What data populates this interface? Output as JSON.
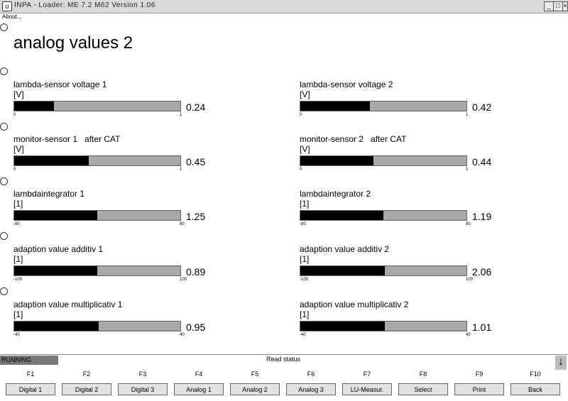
{
  "window": {
    "title": "INPA - Loader:  ME 7.2 M62 Version 1.06",
    "controls": {
      "minimize": "_",
      "maximize": "□",
      "close": "×"
    }
  },
  "menu": {
    "about": "About..."
  },
  "page": {
    "title": "analog values 2"
  },
  "gauges": [
    {
      "name": "lambda-sensor voltage 1",
      "name2": "",
      "unit": "[V]",
      "min": "0",
      "max": "1",
      "value": "0.24",
      "fraction": 0.24
    },
    {
      "name": "lambda-sensor voltage 2",
      "name2": "",
      "unit": "[V]",
      "min": "0",
      "max": "1",
      "value": "0.42",
      "fraction": 0.42
    },
    {
      "name": "monitor-sensor 1",
      "name2": "after CAT",
      "unit": "[V]",
      "min": "0",
      "max": "1",
      "value": "0.45",
      "fraction": 0.45
    },
    {
      "name": "monitor-sensor 2",
      "name2": "after CAT",
      "unit": "[V]",
      "min": "0",
      "max": "1",
      "value": "0.44",
      "fraction": 0.44
    },
    {
      "name": "lambdaintegrator 1",
      "name2": "",
      "unit": "[1]",
      "min": "-80",
      "max": "80",
      "value": "1.25",
      "fraction": 0.5
    },
    {
      "name": "lambdaintegrator 2",
      "name2": "",
      "unit": "[1]",
      "min": "-80",
      "max": "80",
      "value": "1.19",
      "fraction": 0.5
    },
    {
      "name": "adaption value additiv 1",
      "name2": "",
      "unit": "[1]",
      "min": "-100",
      "max": "100",
      "value": "0.89",
      "fraction": 0.5
    },
    {
      "name": "adaption value additiv 2",
      "name2": "",
      "unit": "[1]",
      "min": "-100",
      "max": "100",
      "value": "2.06",
      "fraction": 0.51
    },
    {
      "name": "adaption value multiplicativ 1",
      "name2": "",
      "unit": "[1]",
      "min": "-40",
      "max": "40",
      "value": "0.95",
      "fraction": 0.51
    },
    {
      "name": "adaption value multiplicativ 2",
      "name2": "",
      "unit": "[1]",
      "min": "-40",
      "max": "40",
      "value": "1.01",
      "fraction": 0.51
    }
  ],
  "status": {
    "state": "RUNNING",
    "message": "Read status",
    "arrow": "↓"
  },
  "fkeys": [
    {
      "key": "F1",
      "label": "Digital 1"
    },
    {
      "key": "F2",
      "label": "Digital 2"
    },
    {
      "key": "F3",
      "label": "Digital 3"
    },
    {
      "key": "F4",
      "label": "Analog 1"
    },
    {
      "key": "F5",
      "label": "Analog 2"
    },
    {
      "key": "F6",
      "label": "Analog 3"
    },
    {
      "key": "F7",
      "label": "LU-Measur."
    },
    {
      "key": "F8",
      "label": "Select"
    },
    {
      "key": "F9",
      "label": "Print"
    },
    {
      "key": "F10",
      "label": "Back"
    }
  ]
}
